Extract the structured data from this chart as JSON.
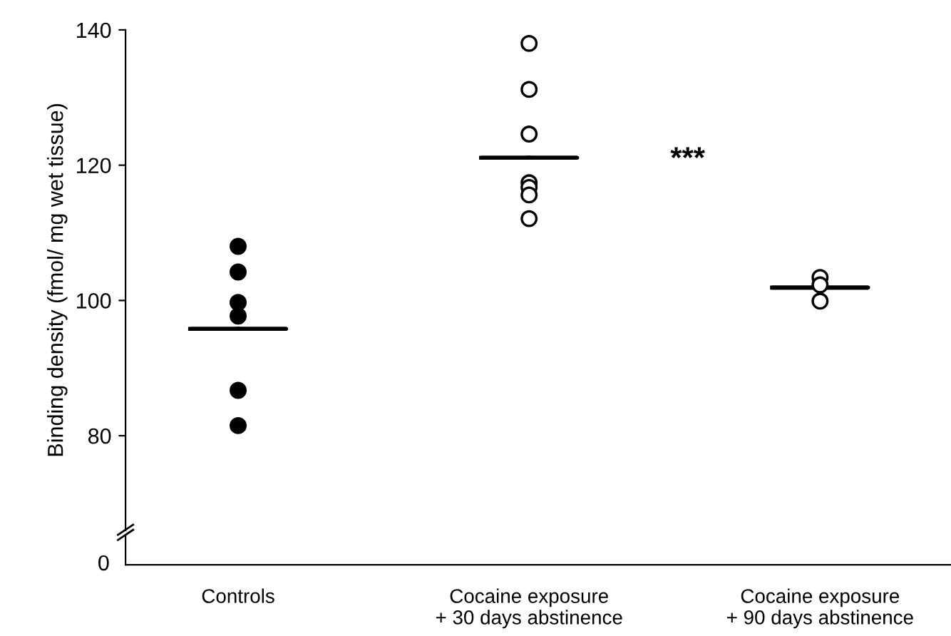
{
  "chart_data": [
    {
      "type": "scatter",
      "ylabel": "Binding density (fmol/ mg wet tissue)",
      "categories": [
        "Controls",
        "Cocaine exposure\n+ 30 days abstinence",
        "Cocaine exposure\n+ 90 days abstinence"
      ],
      "series": [
        {
          "color": "#000000",
          "marker": "circle",
          "x": [
            "Controls",
            "Controls",
            "Controls",
            "Controls",
            "Controls",
            "Controls"
          ],
          "values": [
            108,
            104.2,
            99.7,
            97.7,
            86.7,
            81.5
          ]
        },
        {
          "color": "#ffffff",
          "marker": "circle",
          "x": [
            "Cocaine exposure\n+ 30 days abstinence",
            "Cocaine exposure\n+ 30 days abstinence",
            "Cocaine exposure\n+ 30 days abstinence",
            "Cocaine exposure\n+ 30 days abstinence",
            "Cocaine exposure\n+ 30 days abstinence",
            "Cocaine exposure\n+ 30 days abstinence",
            "Cocaine exposure\n+ 30 days abstinence",
            "Cocaine exposure\n+ 90 days abstinence",
            "Cocaine exposure\n+ 90 days abstinence",
            "Cocaine exposure\n+ 90 days abstinence"
          ],
          "values": [
            138,
            131.2,
            124.6,
            117.4,
            116.7,
            115.6,
            112.1,
            103.4,
            102.3,
            99.9
          ]
        },
        {
          "type": "box",
          "color": "#000000",
          "boxes": [
            {
              "low": 95.8,
              "q1": 95.8,
              "median": 95.8,
              "q3": 95.8,
              "high": 95.8
            },
            {
              "low": 121.1,
              "q1": 121.1,
              "median": 121.1,
              "q3": 121.1,
              "high": 121.1
            },
            {
              "low": 101.9,
              "q1": 101.9,
              "median": 101.9,
              "q3": 101.9,
              "high": 101.9
            }
          ]
        }
      ],
      "annotations": [
        "***"
      ],
      "ylim": [
        66,
        140
      ],
      "yticks": [
        80,
        100,
        120,
        140
      ],
      "tick_labels": "y"
    },
    {
      "type": "other",
      "categories": [
        "Controls",
        "Cocaine exposure\n+ 30 days abstinence",
        "Cocaine exposure\n+ 90 days abstinence"
      ],
      "annotations": [
        "0"
      ]
    }
  ]
}
